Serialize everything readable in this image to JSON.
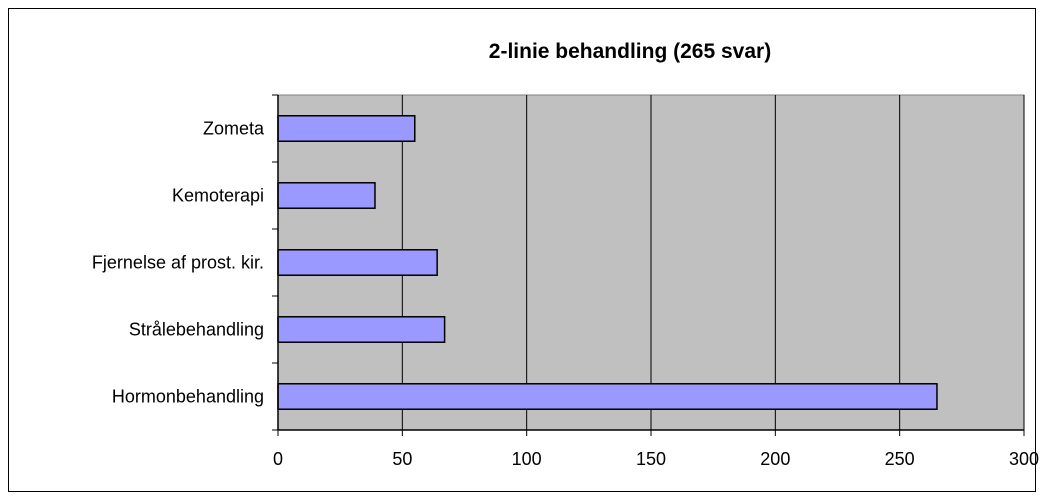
{
  "chart_data": {
    "type": "bar",
    "orientation": "horizontal",
    "title": "2-linie behandling (265 svar)",
    "xlabel": "",
    "ylabel": "",
    "categories": [
      "Hormonbehandling",
      "Strålebehandling",
      "Fjernelse af prost. kir.",
      "Kemoterapi",
      "Zometa"
    ],
    "values": [
      265,
      67,
      64,
      39,
      55
    ],
    "xlim": [
      0,
      300
    ],
    "xticks": [
      0,
      50,
      100,
      150,
      200,
      250,
      300
    ],
    "grid": true,
    "legend": false,
    "colors": {
      "bar_fill": "#9999FF",
      "bar_stroke": "#000000",
      "plot_background": "#C0C0C0",
      "gridline": "#000000"
    }
  }
}
